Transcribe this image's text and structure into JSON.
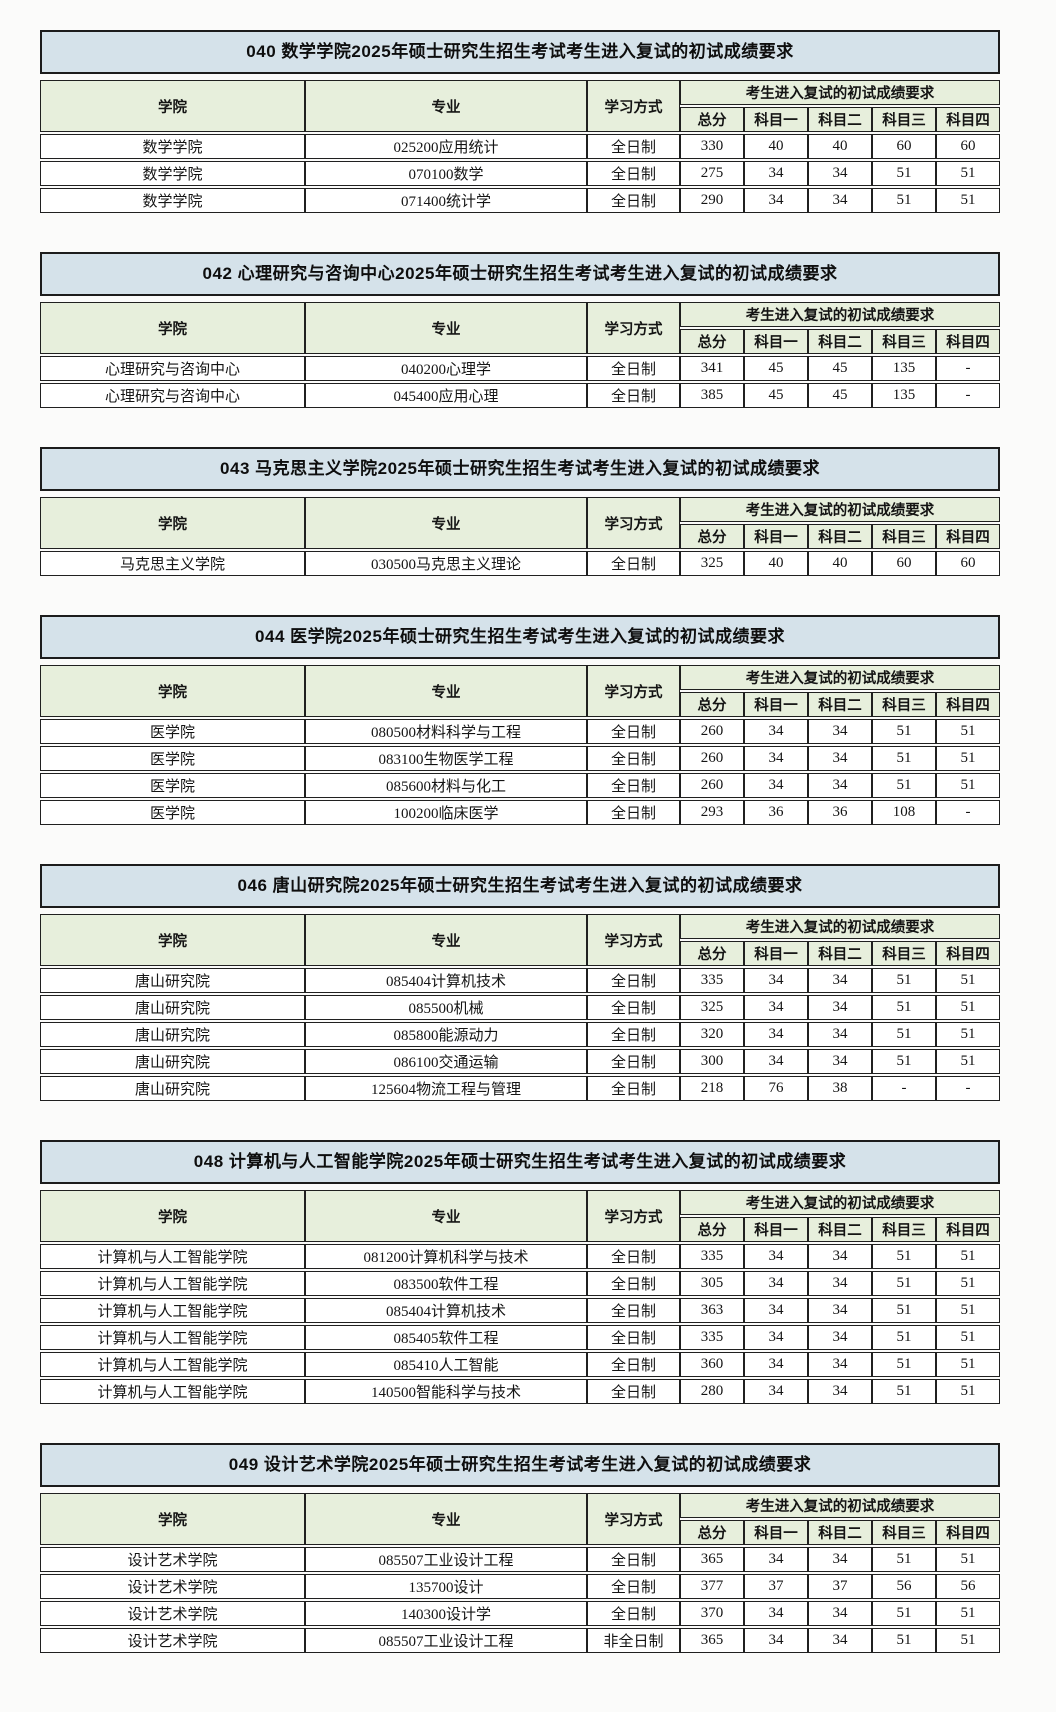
{
  "header": {
    "college": "学院",
    "major": "专业",
    "study_mode": "学习方式",
    "score_group": "考生进入复试的初试成绩要求",
    "score_columns": [
      "总分",
      "科目一",
      "科目二",
      "科目三",
      "科目四"
    ]
  },
  "colors": {
    "title_bar_bg": "#d5e2ea",
    "header_bg": "#e7efdc",
    "border": "#202020",
    "row_bg": "#ffffff"
  },
  "tables": [
    {
      "title": "040 数学学院2025年硕士研究生招生考试考生进入复试的初试成绩要求",
      "rows": [
        [
          "数学学院",
          "025200应用统计",
          "全日制",
          "330",
          "40",
          "40",
          "60",
          "60"
        ],
        [
          "数学学院",
          "070100数学",
          "全日制",
          "275",
          "34",
          "34",
          "51",
          "51"
        ],
        [
          "数学学院",
          "071400统计学",
          "全日制",
          "290",
          "34",
          "34",
          "51",
          "51"
        ]
      ]
    },
    {
      "title": "042 心理研究与咨询中心2025年硕士研究生招生考试考生进入复试的初试成绩要求",
      "rows": [
        [
          "心理研究与咨询中心",
          "040200心理学",
          "全日制",
          "341",
          "45",
          "45",
          "135",
          "-"
        ],
        [
          "心理研究与咨询中心",
          "045400应用心理",
          "全日制",
          "385",
          "45",
          "45",
          "135",
          "-"
        ]
      ]
    },
    {
      "title": "043 马克思主义学院2025年硕士研究生招生考试考生进入复试的初试成绩要求",
      "rows": [
        [
          "马克思主义学院",
          "030500马克思主义理论",
          "全日制",
          "325",
          "40",
          "40",
          "60",
          "60"
        ]
      ]
    },
    {
      "title": "044 医学院2025年硕士研究生招生考试考生进入复试的初试成绩要求",
      "rows": [
        [
          "医学院",
          "080500材料科学与工程",
          "全日制",
          "260",
          "34",
          "34",
          "51",
          "51"
        ],
        [
          "医学院",
          "083100生物医学工程",
          "全日制",
          "260",
          "34",
          "34",
          "51",
          "51"
        ],
        [
          "医学院",
          "085600材料与化工",
          "全日制",
          "260",
          "34",
          "34",
          "51",
          "51"
        ],
        [
          "医学院",
          "100200临床医学",
          "全日制",
          "293",
          "36",
          "36",
          "108",
          "-"
        ]
      ]
    },
    {
      "title": "046 唐山研究院2025年硕士研究生招生考试考生进入复试的初试成绩要求",
      "rows": [
        [
          "唐山研究院",
          "085404计算机技术",
          "全日制",
          "335",
          "34",
          "34",
          "51",
          "51"
        ],
        [
          "唐山研究院",
          "085500机械",
          "全日制",
          "325",
          "34",
          "34",
          "51",
          "51"
        ],
        [
          "唐山研究院",
          "085800能源动力",
          "全日制",
          "320",
          "34",
          "34",
          "51",
          "51"
        ],
        [
          "唐山研究院",
          "086100交通运输",
          "全日制",
          "300",
          "34",
          "34",
          "51",
          "51"
        ],
        [
          "唐山研究院",
          "125604物流工程与管理",
          "全日制",
          "218",
          "76",
          "38",
          "-",
          "-"
        ]
      ]
    },
    {
      "title": "048 计算机与人工智能学院2025年硕士研究生招生考试考生进入复试的初试成绩要求",
      "rows": [
        [
          "计算机与人工智能学院",
          "081200计算机科学与技术",
          "全日制",
          "335",
          "34",
          "34",
          "51",
          "51"
        ],
        [
          "计算机与人工智能学院",
          "083500软件工程",
          "全日制",
          "305",
          "34",
          "34",
          "51",
          "51"
        ],
        [
          "计算机与人工智能学院",
          "085404计算机技术",
          "全日制",
          "363",
          "34",
          "34",
          "51",
          "51"
        ],
        [
          "计算机与人工智能学院",
          "085405软件工程",
          "全日制",
          "335",
          "34",
          "34",
          "51",
          "51"
        ],
        [
          "计算机与人工智能学院",
          "085410人工智能",
          "全日制",
          "360",
          "34",
          "34",
          "51",
          "51"
        ],
        [
          "计算机与人工智能学院",
          "140500智能科学与技术",
          "全日制",
          "280",
          "34",
          "34",
          "51",
          "51"
        ]
      ]
    },
    {
      "title": "049 设计艺术学院2025年硕士研究生招生考试考生进入复试的初试成绩要求",
      "rows": [
        [
          "设计艺术学院",
          "085507工业设计工程",
          "全日制",
          "365",
          "34",
          "34",
          "51",
          "51"
        ],
        [
          "设计艺术学院",
          "135700设计",
          "全日制",
          "377",
          "37",
          "37",
          "56",
          "56"
        ],
        [
          "设计艺术学院",
          "140300设计学",
          "全日制",
          "370",
          "34",
          "34",
          "51",
          "51"
        ],
        [
          "设计艺术学院",
          "085507工业设计工程",
          "非全日制",
          "365",
          "34",
          "34",
          "51",
          "51"
        ]
      ]
    }
  ]
}
